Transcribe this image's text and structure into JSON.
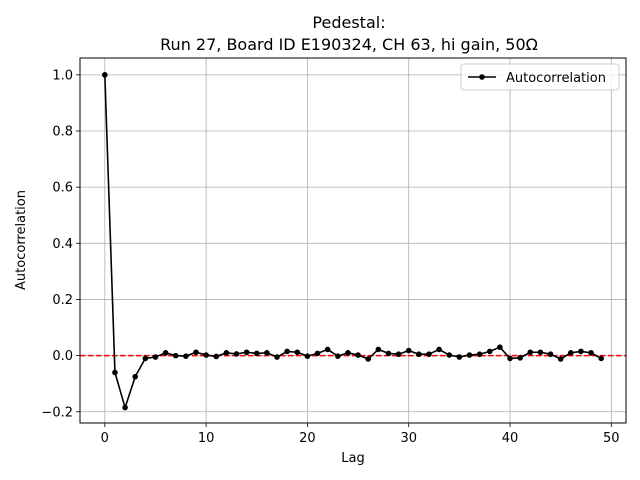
{
  "chart_data": {
    "type": "line",
    "title_line1": "Pedestal:",
    "title_line2": "Run 27, Board ID E190324, CH 63, hi gain, 50Ω",
    "xlabel": "Lag",
    "ylabel": "Autocorrelation",
    "xlim": [
      -2.45,
      51.45
    ],
    "ylim": [
      -0.24,
      1.06
    ],
    "xticks": [
      0,
      10,
      20,
      30,
      40,
      50
    ],
    "yticks": [
      -0.2,
      0.0,
      0.2,
      0.4,
      0.6,
      0.8,
      1.0
    ],
    "ytick_labels": [
      "−0.2",
      "0.0",
      "0.2",
      "0.4",
      "0.6",
      "0.8",
      "1.0"
    ],
    "grid": true,
    "legend_position": "top-right",
    "reference_line": {
      "y": 0,
      "color": "#ff0000",
      "style": "dashed"
    },
    "series": [
      {
        "name": "Autocorrelation",
        "color": "#000000",
        "marker": "circle",
        "x": [
          0,
          1,
          2,
          3,
          4,
          5,
          6,
          7,
          8,
          9,
          10,
          11,
          12,
          13,
          14,
          15,
          16,
          17,
          18,
          19,
          20,
          21,
          22,
          23,
          24,
          25,
          26,
          27,
          28,
          29,
          30,
          31,
          32,
          33,
          34,
          35,
          36,
          37,
          38,
          39,
          40,
          41,
          42,
          43,
          44,
          45,
          46,
          47,
          48,
          49
        ],
        "y": [
          1.0,
          -0.06,
          -0.185,
          -0.075,
          -0.01,
          -0.005,
          0.01,
          0.0,
          -0.002,
          0.012,
          0.002,
          -0.003,
          0.01,
          0.006,
          0.012,
          0.008,
          0.01,
          -0.005,
          0.015,
          0.012,
          -0.002,
          0.008,
          0.022,
          -0.002,
          0.01,
          0.002,
          -0.012,
          0.022,
          0.008,
          0.005,
          0.018,
          0.005,
          0.005,
          0.022,
          0.002,
          -0.005,
          0.002,
          0.005,
          0.015,
          0.03,
          -0.01,
          -0.008,
          0.012,
          0.012,
          0.005,
          -0.012,
          0.01,
          0.015,
          0.01,
          -0.01
        ]
      }
    ]
  }
}
